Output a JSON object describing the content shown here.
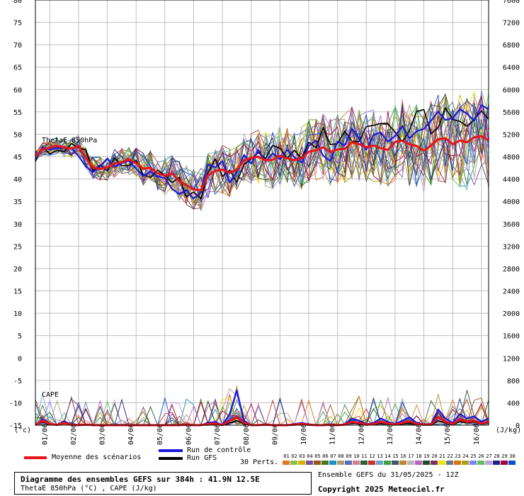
{
  "colors": {
    "mean": "#e8141a",
    "control": "#1a1adb",
    "gfs": "#000000",
    "grid": "#c0c0c0"
  },
  "chart_data": {
    "type": "line",
    "labels": {
      "theta": "ThetaE 850hPa",
      "cape": "CAPE",
      "left_unit": "(°c)",
      "right_unit": "(J/kg)"
    },
    "x_ticks": [
      "01/06",
      "02/06",
      "03/06",
      "04/06",
      "05/06",
      "06/06",
      "07/06",
      "08/06",
      "09/06",
      "10/06",
      "11/06",
      "12/06",
      "13/06",
      "14/06",
      "15/06",
      "16/06"
    ],
    "y_left_ticks": [
      80,
      75,
      70,
      65,
      60,
      55,
      50,
      45,
      40,
      35,
      30,
      25,
      20,
      15,
      10,
      5,
      0,
      -5,
      -10,
      -15
    ],
    "y_right_ticks": [
      7600,
      7200,
      6800,
      6400,
      6000,
      5600,
      5200,
      4800,
      4400,
      4000,
      3600,
      3200,
      2800,
      2400,
      2000,
      1600,
      1200,
      800,
      400,
      0
    ],
    "ylim_left": [
      -15,
      80
    ],
    "cape_ylim": [
      0,
      1200
    ],
    "x_steps": 64,
    "step_hours": 6,
    "theta_mean": [
      45.0,
      46.6,
      47.0,
      47.5,
      47.0,
      46.8,
      47.4,
      44.7,
      42.6,
      42.2,
      42.6,
      43.5,
      43.7,
      44.4,
      43.5,
      42.3,
      42.5,
      41.3,
      40.7,
      41.2,
      39.6,
      38.6,
      37.7,
      37.5,
      40.8,
      41.8,
      42.1,
      41.4,
      42.1,
      44.2,
      44.7,
      45.0,
      44.2,
      44.3,
      45.2,
      44.6,
      44.2,
      44.6,
      46.1,
      46.4,
      47.1,
      46.0,
      46.6,
      46.7,
      48.2,
      47.8,
      47.1,
      47.5,
      46.9,
      46.5,
      48.3,
      48.6,
      47.7,
      47.4,
      46.3,
      47.5,
      48.9,
      49.1,
      47.8,
      48.6,
      48.2,
      49.3,
      49.6,
      48.6
    ],
    "theta_control": [
      44.4,
      47.1,
      46.6,
      46.8,
      47.1,
      46.9,
      45.1,
      42.8,
      41.5,
      42.8,
      44.5,
      42.8,
      43.5,
      44.1,
      42.3,
      40.7,
      41.6,
      40.6,
      40.2,
      37.8,
      36.6,
      37.5,
      35.6,
      37.1,
      43.3,
      42.6,
      44.0,
      39.2,
      41.5,
      45.4,
      43.4,
      46.5,
      43.9,
      45.7,
      44.4,
      46.5,
      44.9,
      43.7,
      47.4,
      48.6,
      45.2,
      44.0,
      48.4,
      47.5,
      51.3,
      48.9,
      46.5,
      49.8,
      50.4,
      48.3,
      49.6,
      51.8,
      49.1,
      50.7,
      51.2,
      53.0,
      55.1,
      53.2,
      53.6,
      55.6,
      54.6,
      53.0,
      56.5,
      55.6
    ],
    "theta_gfs": [
      44.0,
      47.2,
      45.6,
      46.4,
      46.1,
      47.9,
      47.0,
      46.5,
      41.9,
      43.1,
      41.8,
      44.7,
      43.0,
      43.0,
      44.2,
      41.0,
      40.3,
      42.0,
      40.8,
      39.2,
      40.4,
      36.0,
      37.1,
      35.6,
      41.4,
      44.5,
      40.6,
      42.0,
      39.3,
      43.2,
      44.5,
      45.9,
      44.6,
      47.5,
      46.9,
      44.6,
      46.4,
      44.6,
      48.2,
      47.0,
      51.5,
      47.7,
      47.9,
      50.7,
      48.4,
      48.4,
      51.7,
      52.0,
      52.4,
      52.3,
      50.5,
      48.3,
      50.9,
      55.1,
      55.5,
      50.1,
      51.5,
      55.9,
      53.3,
      52.9,
      51.8,
      53.3,
      55.2,
      53.4
    ],
    "cape_mean": [
      0,
      80,
      20,
      5,
      40,
      10,
      0,
      10,
      0,
      0,
      0,
      0,
      0,
      0,
      0,
      0,
      0,
      0,
      0,
      0,
      0,
      10,
      0,
      0,
      20,
      30,
      0,
      80,
      140,
      40,
      0,
      0,
      10,
      0,
      0,
      0,
      10,
      20,
      10,
      0,
      0,
      10,
      0,
      10,
      60,
      40,
      10,
      20,
      60,
      30,
      10,
      40,
      70,
      20,
      10,
      10,
      140,
      60,
      20,
      100,
      60,
      80,
      30,
      60
    ],
    "cape_control": [
      0,
      100,
      30,
      0,
      60,
      20,
      0,
      10,
      0,
      0,
      0,
      0,
      0,
      0,
      0,
      0,
      0,
      0,
      0,
      0,
      0,
      20,
      0,
      0,
      40,
      60,
      0,
      200,
      620,
      80,
      0,
      0,
      20,
      0,
      0,
      0,
      20,
      40,
      20,
      0,
      0,
      20,
      0,
      20,
      120,
      80,
      20,
      40,
      120,
      60,
      20,
      80,
      140,
      40,
      20,
      20,
      280,
      120,
      40,
      200,
      120,
      160,
      60,
      120
    ],
    "cape_gfs": [
      0,
      60,
      10,
      0,
      30,
      10,
      0,
      0,
      0,
      0,
      0,
      0,
      0,
      0,
      0,
      0,
      0,
      0,
      0,
      0,
      0,
      0,
      0,
      0,
      0,
      20,
      0,
      40,
      80,
      20,
      0,
      0,
      0,
      0,
      0,
      0,
      0,
      10,
      0,
      0,
      0,
      0,
      0,
      0,
      40,
      20,
      0,
      10,
      30,
      20,
      0,
      20,
      40,
      10,
      0,
      0,
      80,
      40,
      10,
      60,
      40,
      60,
      20,
      40
    ]
  },
  "legend": {
    "mean_label": "Moyenne des scénarios",
    "control_label": "Run de contrôle",
    "gfs_label": "Run GFS",
    "perts_label": "30 Perts.",
    "pert_numbers": [
      "01",
      "02",
      "03",
      "04",
      "05",
      "06",
      "07",
      "08",
      "09",
      "10",
      "11",
      "12",
      "13",
      "14",
      "15",
      "16",
      "17",
      "18",
      "19",
      "20",
      "21",
      "22",
      "23",
      "24",
      "25",
      "26",
      "27",
      "28",
      "29",
      "30"
    ],
    "pert_colors": [
      "#e07828",
      "#8cbe50",
      "#d8b400",
      "#7050a0",
      "#a05020",
      "#507818",
      "#1890d0",
      "#b0a068",
      "#5870c0",
      "#d08090",
      "#306030",
      "#c83030",
      "#68a8d0",
      "#40a040",
      "#405868",
      "#b88830",
      "#b8b8b8",
      "#c060c0",
      "#205020",
      "#803060",
      "#f0e000",
      "#607890",
      "#e07010",
      "#a8a020",
      "#8080ff",
      "#60c060",
      "#c0a0e0",
      "#202080",
      "#a00040",
      "#0050d0"
    ]
  },
  "footer": {
    "title_line": "Diagramme des ensembles GEFS sur 384h : 41.9N 12.5E",
    "subtitle_line": "ThetaE 850hPa (°C) , CAPE (J/kg)",
    "ensemble_line": "Ensemble GEFS du 31/05/2025 - 12Z",
    "copyright": "Copyright 2025 Meteociel.fr"
  }
}
